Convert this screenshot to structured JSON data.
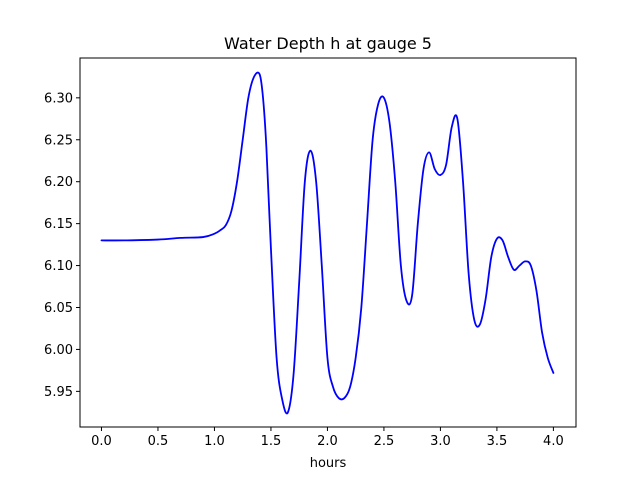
{
  "chart_data": {
    "type": "line",
    "title": "Water Depth h at gauge 5",
    "xlabel": "hours",
    "ylabel": "",
    "xlim": [
      -0.19,
      4.2
    ],
    "ylim": [
      5.9075,
      6.3475
    ],
    "xticks": [
      0.0,
      0.5,
      1.0,
      1.5,
      2.0,
      2.5,
      3.0,
      3.5,
      4.0
    ],
    "xtick_labels": [
      "0.0",
      "0.5",
      "1.0",
      "1.5",
      "2.0",
      "2.5",
      "3.0",
      "3.5",
      "4.0"
    ],
    "yticks": [
      5.95,
      6.0,
      6.05,
      6.1,
      6.15,
      6.2,
      6.25,
      6.3
    ],
    "ytick_labels": [
      "5.95",
      "6.00",
      "6.05",
      "6.10",
      "6.15",
      "6.20",
      "6.25",
      "6.30"
    ],
    "grid": false,
    "series": [
      {
        "color": "#0000ff",
        "x": [
          0.0,
          0.2,
          0.5,
          0.7,
          0.9,
          1.0,
          1.05,
          1.1,
          1.15,
          1.2,
          1.25,
          1.3,
          1.35,
          1.4,
          1.43,
          1.46,
          1.5,
          1.55,
          1.6,
          1.65,
          1.7,
          1.75,
          1.8,
          1.85,
          1.9,
          1.95,
          2.0,
          2.05,
          2.1,
          2.15,
          2.2,
          2.25,
          2.3,
          2.35,
          2.4,
          2.45,
          2.5,
          2.55,
          2.6,
          2.65,
          2.7,
          2.75,
          2.8,
          2.85,
          2.9,
          2.95,
          3.0,
          3.05,
          3.1,
          3.15,
          3.2,
          3.25,
          3.3,
          3.35,
          3.4,
          3.45,
          3.5,
          3.55,
          3.6,
          3.65,
          3.7,
          3.75,
          3.8,
          3.85,
          3.9,
          3.95,
          4.0
        ],
        "y": [
          6.13,
          6.13,
          6.131,
          6.133,
          6.134,
          6.138,
          6.142,
          6.148,
          6.165,
          6.2,
          6.25,
          6.3,
          6.325,
          6.328,
          6.3,
          6.24,
          6.12,
          5.99,
          5.94,
          5.925,
          5.97,
          6.08,
          6.2,
          6.237,
          6.2,
          6.1,
          5.99,
          5.955,
          5.942,
          5.942,
          5.955,
          5.99,
          6.05,
          6.15,
          6.25,
          6.293,
          6.3,
          6.27,
          6.2,
          6.1,
          6.058,
          6.065,
          6.15,
          6.215,
          6.235,
          6.215,
          6.208,
          6.22,
          6.265,
          6.275,
          6.2,
          6.09,
          6.035,
          6.03,
          6.06,
          6.11,
          6.132,
          6.13,
          6.11,
          6.095,
          6.1,
          6.105,
          6.1,
          6.07,
          6.02,
          5.99,
          5.972
        ]
      }
    ]
  }
}
